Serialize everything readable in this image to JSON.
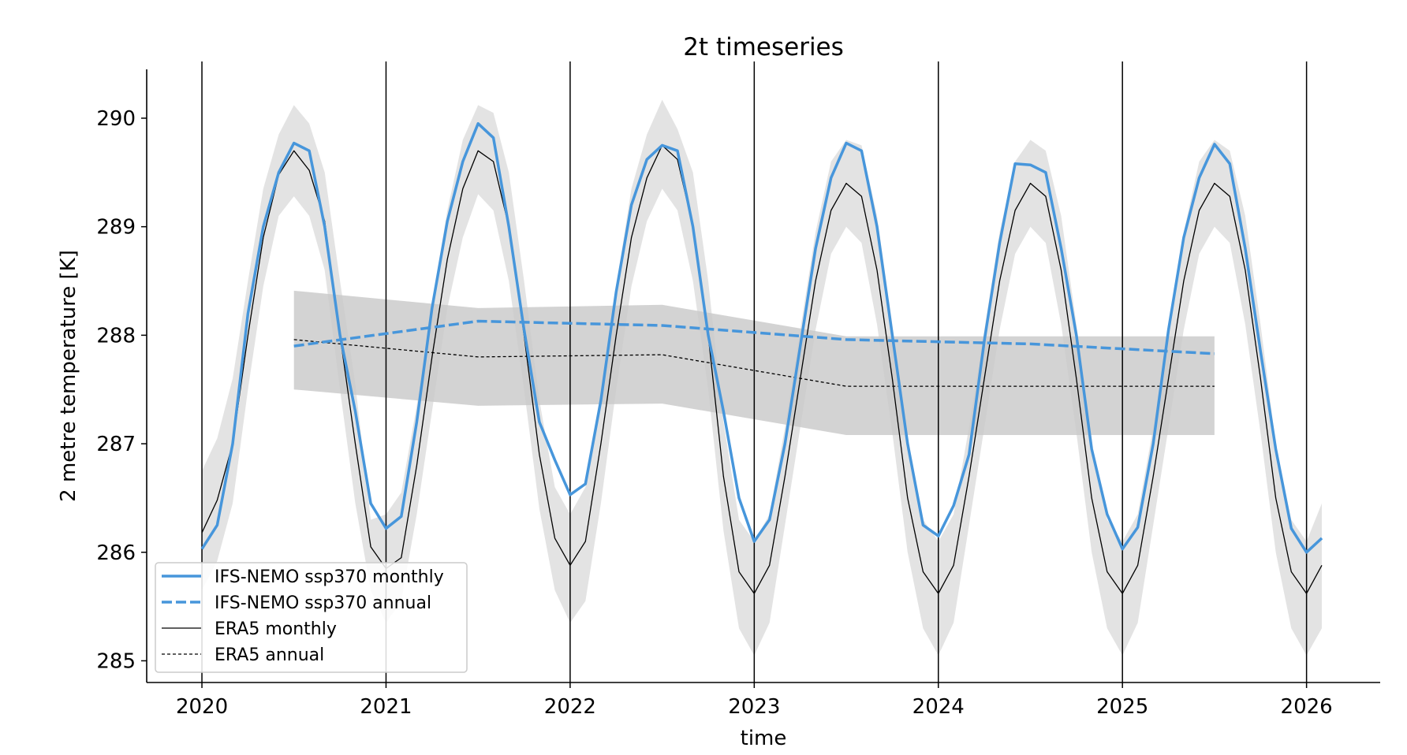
{
  "chart_data": {
    "type": "line",
    "title": "2t timeseries",
    "xlabel": "time",
    "ylabel": "2 metre temperature [K]",
    "xlim": [
      2019.7,
      2026.4
    ],
    "ylim": [
      284.8,
      290.45
    ],
    "xticks": [
      "2020",
      "2021",
      "2022",
      "2023",
      "2024",
      "2025",
      "2026"
    ],
    "yticks": [
      "285",
      "286",
      "287",
      "288",
      "289",
      "290"
    ],
    "grid": "vertical lines at year starts",
    "legend_position": "lower-left",
    "colors": {
      "ifs": "#4796db",
      "era5": "#000000",
      "band_monthly": "#dedede",
      "band_annual": "#c8c8c8"
    },
    "series": [
      {
        "name": "IFS-NEMO ssp370 monthly",
        "style": "solid-blue",
        "x": [
          2020.0,
          2020.083,
          2020.167,
          2020.25,
          2020.333,
          2020.417,
          2020.5,
          2020.583,
          2020.667,
          2020.75,
          2020.833,
          2020.917,
          2021.0,
          2021.083,
          2021.167,
          2021.25,
          2021.333,
          2021.417,
          2021.5,
          2021.583,
          2021.667,
          2021.75,
          2021.833,
          2021.917,
          2022.0,
          2022.083,
          2022.167,
          2022.25,
          2022.333,
          2022.417,
          2022.5,
          2022.583,
          2022.667,
          2022.75,
          2022.833,
          2022.917,
          2023.0,
          2023.083,
          2023.167,
          2023.25,
          2023.333,
          2023.417,
          2023.5,
          2023.583,
          2023.667,
          2023.75,
          2023.833,
          2023.917,
          2024.0,
          2024.083,
          2024.167,
          2024.25,
          2024.333,
          2024.417,
          2024.5,
          2024.583,
          2024.667,
          2024.75,
          2024.833,
          2024.917,
          2025.0,
          2025.083,
          2025.167,
          2025.25,
          2025.333,
          2025.417,
          2025.5,
          2025.583,
          2025.667,
          2025.75,
          2025.833,
          2025.917,
          2026.0,
          2026.083
        ],
        "y": [
          286.03,
          286.25,
          287.0,
          288.2,
          289.0,
          289.5,
          289.77,
          289.7,
          289.0,
          288.0,
          287.3,
          286.45,
          286.22,
          286.33,
          287.2,
          288.25,
          289.05,
          289.6,
          289.95,
          289.82,
          289.0,
          288.05,
          287.2,
          286.85,
          286.53,
          286.63,
          287.4,
          288.4,
          289.2,
          289.62,
          289.75,
          289.7,
          289.0,
          288.0,
          287.3,
          286.5,
          286.1,
          286.3,
          287.0,
          287.9,
          288.8,
          289.45,
          289.77,
          289.7,
          289.0,
          288.0,
          287.0,
          286.25,
          286.15,
          286.43,
          286.9,
          287.95,
          288.85,
          289.58,
          289.57,
          289.5,
          288.8,
          288.0,
          286.95,
          286.35,
          286.03,
          286.23,
          287.0,
          288.05,
          288.9,
          289.45,
          289.76,
          289.58,
          288.8,
          287.85,
          286.95,
          286.22,
          286.0,
          286.13
        ]
      },
      {
        "name": "IFS-NEMO ssp370 annual",
        "style": "dashed-blue",
        "x": [
          2020.5,
          2021.5,
          2022.5,
          2023.5,
          2024.5,
          2025.5
        ],
        "y": [
          287.9,
          288.13,
          288.09,
          287.96,
          287.92,
          287.83
        ]
      },
      {
        "name": "ERA5 monthly",
        "style": "solid-black-thin",
        "x": [
          2020.0,
          2020.083,
          2020.167,
          2020.25,
          2020.333,
          2020.417,
          2020.5,
          2020.583,
          2020.667,
          2020.75,
          2020.833,
          2020.917,
          2021.0,
          2021.083,
          2021.167,
          2021.25,
          2021.333,
          2021.417,
          2021.5,
          2021.583,
          2021.667,
          2021.75,
          2021.833,
          2021.917,
          2022.0,
          2022.083,
          2022.167,
          2022.25,
          2022.333,
          2022.417,
          2022.5,
          2022.583,
          2022.667,
          2022.75,
          2022.833,
          2022.917,
          2023.0,
          2023.083,
          2023.167,
          2023.25,
          2023.333,
          2023.417,
          2023.5,
          2023.583,
          2023.667,
          2023.75,
          2023.833,
          2023.917,
          2024.0,
          2024.083,
          2024.167,
          2024.25,
          2024.333,
          2024.417,
          2024.5,
          2024.583,
          2024.667,
          2024.75,
          2024.833,
          2024.917,
          2025.0,
          2025.083,
          2025.167,
          2025.25,
          2025.333,
          2025.417,
          2025.5,
          2025.583,
          2025.667,
          2025.75,
          2025.833,
          2025.917,
          2026.0,
          2026.083
        ],
        "y": [
          286.18,
          286.48,
          287.0,
          288.0,
          288.9,
          289.48,
          289.7,
          289.52,
          289.05,
          288.0,
          287.0,
          286.05,
          285.85,
          285.95,
          286.8,
          287.8,
          288.7,
          289.35,
          289.7,
          289.6,
          289.0,
          288.0,
          286.9,
          286.13,
          285.88,
          286.1,
          287.0,
          288.0,
          288.9,
          289.45,
          289.75,
          289.62,
          289.0,
          288.0,
          286.7,
          285.82,
          285.62,
          285.88,
          286.7,
          287.6,
          288.5,
          289.15,
          289.4,
          289.28,
          288.6,
          287.6,
          286.5,
          285.82,
          285.62,
          285.88,
          286.7,
          287.6,
          288.5,
          289.15,
          289.4,
          289.28,
          288.6,
          287.6,
          286.5,
          285.82,
          285.62,
          285.88,
          286.7,
          287.6,
          288.5,
          289.15,
          289.4,
          289.28,
          288.6,
          287.6,
          286.5,
          285.82,
          285.62,
          285.88
        ]
      },
      {
        "name": "ERA5 annual",
        "style": "dashed-black-thin",
        "x": [
          2020.5,
          2021.5,
          2022.5,
          2023.5,
          2024.5,
          2025.5
        ],
        "y": [
          287.96,
          287.8,
          287.82,
          287.53,
          287.53,
          287.53
        ]
      }
    ],
    "bands": {
      "monthly": {
        "x": [
          2020.0,
          2020.083,
          2020.167,
          2020.25,
          2020.333,
          2020.417,
          2020.5,
          2020.583,
          2020.667,
          2020.75,
          2020.833,
          2020.917,
          2021.0,
          2021.083,
          2021.167,
          2021.25,
          2021.333,
          2021.417,
          2021.5,
          2021.583,
          2021.667,
          2021.75,
          2021.833,
          2021.917,
          2022.0,
          2022.083,
          2022.167,
          2022.25,
          2022.333,
          2022.417,
          2022.5,
          2022.583,
          2022.667,
          2022.75,
          2022.833,
          2022.917,
          2023.0,
          2023.083,
          2023.167,
          2023.25,
          2023.333,
          2023.417,
          2023.5,
          2023.583,
          2023.667,
          2023.75,
          2023.833,
          2023.917,
          2024.0,
          2024.083,
          2024.167,
          2024.25,
          2024.333,
          2024.417,
          2024.5,
          2024.583,
          2024.667,
          2024.75,
          2024.833,
          2024.917,
          2025.0,
          2025.083,
          2025.167,
          2025.25,
          2025.333,
          2025.417,
          2025.5,
          2025.583,
          2025.667,
          2025.75,
          2025.833,
          2025.917,
          2026.0,
          2026.083
        ],
        "upper": [
          286.75,
          287.05,
          287.6,
          288.5,
          289.35,
          289.85,
          290.12,
          289.95,
          289.5,
          288.5,
          287.55,
          286.3,
          286.35,
          286.55,
          287.35,
          288.3,
          289.15,
          289.8,
          290.12,
          290.05,
          289.5,
          288.5,
          287.4,
          286.6,
          286.35,
          286.6,
          287.45,
          288.45,
          289.35,
          289.85,
          290.17,
          289.9,
          289.5,
          288.5,
          287.2,
          286.3,
          286.1,
          286.35,
          287.15,
          288.05,
          288.95,
          289.6,
          289.8,
          289.75,
          289.1,
          288.1,
          287.0,
          286.3,
          286.1,
          286.35,
          287.15,
          288.05,
          288.95,
          289.6,
          289.8,
          289.7,
          289.1,
          288.1,
          287.0,
          286.3,
          286.1,
          286.35,
          287.15,
          288.05,
          288.95,
          289.6,
          289.8,
          289.7,
          289.1,
          288.1,
          287.0,
          286.3,
          286.1,
          286.45
        ],
        "lower": [
          285.65,
          285.92,
          286.45,
          287.5,
          288.45,
          289.1,
          289.28,
          289.1,
          288.6,
          287.5,
          286.45,
          285.65,
          285.35,
          285.55,
          286.35,
          287.3,
          288.25,
          288.9,
          289.3,
          289.15,
          288.5,
          287.5,
          286.4,
          285.65,
          285.35,
          285.55,
          286.45,
          287.5,
          288.45,
          289.05,
          289.35,
          289.15,
          288.5,
          287.5,
          286.2,
          285.3,
          285.05,
          285.35,
          286.25,
          287.15,
          288.05,
          288.75,
          289.0,
          288.85,
          288.1,
          287.1,
          286.0,
          285.3,
          285.05,
          285.35,
          286.25,
          287.15,
          288.05,
          288.75,
          289.0,
          288.85,
          288.1,
          287.1,
          286.0,
          285.3,
          285.05,
          285.35,
          286.25,
          287.15,
          288.05,
          288.75,
          289.0,
          288.85,
          288.1,
          287.1,
          286.0,
          285.3,
          285.05,
          285.3
        ]
      },
      "annual": {
        "x": [
          2020.5,
          2021.5,
          2022.5,
          2023.5,
          2024.5,
          2025.5
        ],
        "upper": [
          288.41,
          288.25,
          288.28,
          287.99,
          287.99,
          287.99
        ],
        "lower": [
          287.5,
          287.35,
          287.37,
          287.08,
          287.08,
          287.08
        ]
      }
    }
  }
}
